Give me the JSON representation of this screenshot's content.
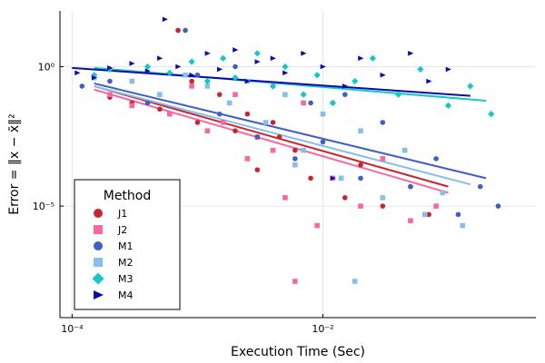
{
  "chart_data": {
    "type": "scatter",
    "title": "",
    "xlabel": "Execution Time (Sec)",
    "ylabel": "Error = ‖x − x̄‖²",
    "xscale": "log",
    "yscale": "log",
    "xlim": [
      8e-05,
      0.5
    ],
    "ylim": [
      1e-09,
      100
    ],
    "x_ticks": [
      {
        "value": 0.0001,
        "label": "10⁻⁴"
      },
      {
        "value": 0.01,
        "label": "10⁻²"
      }
    ],
    "y_ticks": [
      {
        "value": 1,
        "label": "10⁰"
      },
      {
        "value": 1e-05,
        "label": "10⁻⁵"
      }
    ],
    "grid": true,
    "legend": {
      "title": "Method",
      "position": "bottom-left"
    },
    "series": [
      {
        "name": "J1",
        "color": "#c8262c",
        "marker": "circle",
        "fit": {
          "x": [
            0.00015,
            0.1
          ],
          "y": [
            0.2,
            5e-05
          ]
        },
        "points": [
          [
            0.0002,
            0.08
          ],
          [
            0.0003,
            0.05
          ],
          [
            0.0005,
            0.03
          ],
          [
            0.0007,
            20
          ],
          [
            0.001,
            0.01
          ],
          [
            0.0015,
            0.1
          ],
          [
            0.002,
            0.005
          ],
          [
            0.003,
            0.0002
          ],
          [
            0.004,
            0.01
          ],
          [
            0.006,
            0.001
          ],
          [
            0.008,
            0.0001
          ],
          [
            0.012,
            0.05
          ],
          [
            0.015,
            2e-05
          ],
          [
            0.02,
            0.0003
          ],
          [
            0.03,
            1e-05
          ],
          [
            0.05,
            5e-05
          ],
          [
            0.07,
            5e-06
          ],
          [
            0.0009,
            0.3
          ],
          [
            0.0025,
            0.02
          ],
          [
            0.0045,
            0.003
          ]
        ]
      },
      {
        "name": "J2",
        "color": "#f767a1",
        "marker": "square",
        "fit": {
          "x": [
            0.00015,
            0.1
          ],
          "y": [
            0.15,
            3e-05
          ]
        },
        "points": [
          [
            0.0002,
            0.1
          ],
          [
            0.0003,
            0.04
          ],
          [
            0.0006,
            0.02
          ],
          [
            0.0009,
            0.2
          ],
          [
            0.0012,
            0.005
          ],
          [
            0.002,
            0.1
          ],
          [
            0.0025,
            0.0005
          ],
          [
            0.004,
            0.001
          ],
          [
            0.005,
            2e-05
          ],
          [
            0.007,
            0.05
          ],
          [
            0.009,
            2e-06
          ],
          [
            0.012,
            0.0001
          ],
          [
            0.02,
            1e-05
          ],
          [
            0.03,
            0.0005
          ],
          [
            0.05,
            3e-06
          ],
          [
            0.08,
            1e-05
          ],
          [
            0.006,
            2e-08
          ],
          [
            0.0016,
            0.01
          ],
          [
            0.003,
            0.003
          ]
        ]
      },
      {
        "name": "M1",
        "color": "#3f5ec6",
        "marker": "circle",
        "fit": {
          "x": [
            0.00015,
            0.2
          ],
          "y": [
            0.25,
            0.0001
          ]
        },
        "points": [
          [
            0.00012,
            0.2
          ],
          [
            0.0002,
            0.3
          ],
          [
            0.0004,
            0.05
          ],
          [
            0.0008,
            20
          ],
          [
            0.001,
            0.5
          ],
          [
            0.0015,
            0.02
          ],
          [
            0.002,
            1
          ],
          [
            0.003,
            0.003
          ],
          [
            0.004,
            0.2
          ],
          [
            0.006,
            0.0005
          ],
          [
            0.008,
            0.05
          ],
          [
            0.01,
            0.002
          ],
          [
            0.015,
            0.1
          ],
          [
            0.02,
            0.0001
          ],
          [
            0.03,
            0.01
          ],
          [
            0.05,
            5e-05
          ],
          [
            0.08,
            0.0005
          ],
          [
            0.12,
            5e-06
          ],
          [
            0.18,
            5e-05
          ],
          [
            0.25,
            1e-05
          ]
        ]
      },
      {
        "name": "M2",
        "color": "#85bfea",
        "marker": "square",
        "fit": {
          "x": [
            0.00015,
            0.15
          ],
          "y": [
            0.2,
            6e-05
          ]
        },
        "points": [
          [
            0.00015,
            0.4
          ],
          [
            0.0003,
            0.3
          ],
          [
            0.0005,
            0.1
          ],
          [
            0.0008,
            0.5
          ],
          [
            0.0012,
            0.2
          ],
          [
            0.0018,
            0.05
          ],
          [
            0.0025,
            0.3
          ],
          [
            0.0035,
            0.01
          ],
          [
            0.005,
            0.1
          ],
          [
            0.007,
            0.001
          ],
          [
            0.01,
            0.02
          ],
          [
            0.014,
            0.0001
          ],
          [
            0.02,
            0.005
          ],
          [
            0.03,
            2e-05
          ],
          [
            0.045,
            0.001
          ],
          [
            0.065,
            5e-06
          ],
          [
            0.09,
            3e-05
          ],
          [
            0.13,
            2e-06
          ],
          [
            0.018,
            2e-08
          ],
          [
            0.006,
            0.0003
          ]
        ]
      },
      {
        "name": "M3",
        "color": "#15c8c8",
        "marker": "diamond",
        "fit": {
          "x": [
            0.00015,
            0.2
          ],
          "y": [
            0.9,
            0.06
          ]
        },
        "points": [
          [
            0.00015,
            0.5
          ],
          [
            0.0002,
            0.8
          ],
          [
            0.0004,
            1
          ],
          [
            0.0006,
            0.6
          ],
          [
            0.0009,
            1.5
          ],
          [
            0.0012,
            0.3
          ],
          [
            0.0016,
            2
          ],
          [
            0.002,
            0.4
          ],
          [
            0.003,
            3
          ],
          [
            0.004,
            0.2
          ],
          [
            0.005,
            1
          ],
          [
            0.007,
            0.1
          ],
          [
            0.009,
            0.5
          ],
          [
            0.012,
            0.05
          ],
          [
            0.018,
            0.3
          ],
          [
            0.025,
            2
          ],
          [
            0.04,
            0.1
          ],
          [
            0.06,
            0.8
          ],
          [
            0.1,
            0.04
          ],
          [
            0.15,
            0.2
          ],
          [
            0.22,
            0.02
          ]
        ]
      },
      {
        "name": "M4",
        "color": "#0a0aad",
        "marker": "triangle-right",
        "fit": {
          "x": [
            0.0001,
            0.15
          ],
          "y": [
            0.9,
            0.09
          ]
        },
        "points": [
          [
            0.00011,
            0.6
          ],
          [
            0.00015,
            0.4
          ],
          [
            0.0002,
            0.9
          ],
          [
            0.0003,
            1.3
          ],
          [
            0.0004,
            0.7
          ],
          [
            0.0005,
            2
          ],
          [
            0.0007,
            1
          ],
          [
            0.0009,
            0.5
          ],
          [
            0.0012,
            3
          ],
          [
            0.0015,
            0.8
          ],
          [
            0.002,
            4
          ],
          [
            0.0025,
            0.3
          ],
          [
            0.003,
            1.5
          ],
          [
            0.004,
            2
          ],
          [
            0.005,
            0.6
          ],
          [
            0.007,
            3
          ],
          [
            0.01,
            1
          ],
          [
            0.015,
            0.2
          ],
          [
            0.02,
            2
          ],
          [
            0.03,
            0.5
          ],
          [
            0.05,
            3
          ],
          [
            0.07,
            0.3
          ],
          [
            0.1,
            0.8
          ],
          [
            0.00055,
            50
          ],
          [
            0.012,
            0.0001
          ]
        ]
      }
    ]
  }
}
